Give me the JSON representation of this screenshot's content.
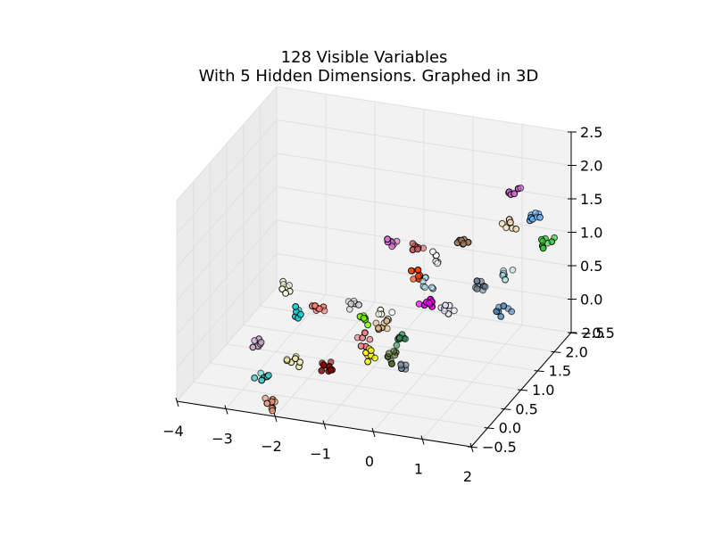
{
  "chart_data": {
    "type": "scatter",
    "projection": "3d",
    "title_lines": [
      "128 Visible Variables",
      "With 5 Hidden Dimensions. Graphed in 3D"
    ],
    "xlabel": "",
    "ylabel": "",
    "zlabel": "",
    "xlim": [
      -4,
      2
    ],
    "ylim": [
      -0.5,
      2.5
    ],
    "zlim": [
      -0.5,
      2.5
    ],
    "x_ticks": [
      "−4",
      "−3",
      "−2",
      "−1",
      "0",
      "1",
      "2"
    ],
    "y_ticks": [
      "−0.5",
      "0.0",
      "0.5",
      "1.0",
      "1.5",
      "2.0",
      "2.5"
    ],
    "z_ticks": [
      "−0.5",
      "0.0",
      "0.5",
      "1.0",
      "1.5",
      "2.0",
      "2.5"
    ],
    "grid": true,
    "marker": "circle",
    "marker_edge_color": "#000000",
    "clusters": [
      {
        "color": "#cc66cc",
        "x": 1.0,
        "y": 2.3,
        "z": 1.6,
        "n": 7
      },
      {
        "color": "#66b3ff",
        "x": 1.4,
        "y": 2.3,
        "z": 1.25,
        "n": 8
      },
      {
        "color": "#f5deb3",
        "x": 1.0,
        "y": 2.1,
        "z": 1.2,
        "n": 7
      },
      {
        "color": "#33cc33",
        "x": 1.8,
        "y": 2.1,
        "z": 1.05,
        "n": 8
      },
      {
        "color": "#a0785a",
        "x": 0.3,
        "y": 1.8,
        "z": 1.05,
        "n": 7
      },
      {
        "color": "#b0e0e6",
        "x": 1.3,
        "y": 1.6,
        "z": 0.8,
        "n": 7
      },
      {
        "color": "#708090",
        "x": 0.9,
        "y": 1.4,
        "z": 0.7,
        "n": 8
      },
      {
        "color": "#4682b4",
        "x": 1.5,
        "y": 1.2,
        "z": 0.5,
        "n": 7
      },
      {
        "color": "#e6e6fa",
        "x": 0.4,
        "y": 1.1,
        "z": 0.45,
        "n": 7
      },
      {
        "color": "#da70d6",
        "x": -1.2,
        "y": 1.9,
        "z": 0.85,
        "n": 7
      },
      {
        "color": "#cd5c5c",
        "x": -0.7,
        "y": 1.9,
        "z": 0.8,
        "n": 6
      },
      {
        "color": "#ffffff",
        "x": -0.3,
        "y": 1.8,
        "z": 0.75,
        "n": 6
      },
      {
        "color": "#ff4500",
        "x": -0.6,
        "y": 1.6,
        "z": 0.6,
        "n": 7
      },
      {
        "color": "#add8e6",
        "x": -0.2,
        "y": 1.5,
        "z": 0.55,
        "n": 6
      },
      {
        "color": "#ff00ff",
        "x": -0.1,
        "y": 1.3,
        "z": 0.4,
        "n": 9
      },
      {
        "color": "#fffff0",
        "x": -0.8,
        "y": 1.0,
        "z": 0.3,
        "n": 6
      },
      {
        "color": "#deb887",
        "x": -0.8,
        "y": 0.9,
        "z": 0.2,
        "n": 7
      },
      {
        "color": "#7cfc00",
        "x": -1.2,
        "y": 1.0,
        "z": 0.2,
        "n": 7
      },
      {
        "color": "#f08080",
        "x": -1.0,
        "y": 0.75,
        "z": 0.05,
        "n": 6
      },
      {
        "color": "#d3d3d3",
        "x": -1.5,
        "y": 1.1,
        "z": 0.3,
        "n": 6
      },
      {
        "color": "#2e8b57",
        "x": -0.3,
        "y": 0.8,
        "z": 0.1,
        "n": 8
      },
      {
        "color": "#ffff00",
        "x": -0.8,
        "y": 0.6,
        "z": -0.05,
        "n": 8
      },
      {
        "color": "#556b2f",
        "x": -0.3,
        "y": 0.6,
        "z": -0.05,
        "n": 7
      },
      {
        "color": "#778899",
        "x": 0.0,
        "y": 0.5,
        "z": -0.1,
        "n": 5
      },
      {
        "color": "#fa8072",
        "x": -2.2,
        "y": 1.1,
        "z": 0.2,
        "n": 7
      },
      {
        "color": "#00ced1",
        "x": -2.5,
        "y": 1.0,
        "z": 0.15,
        "n": 6
      },
      {
        "color": "#f5f5dc",
        "x": -3.0,
        "y": 1.3,
        "z": 0.3,
        "n": 7
      },
      {
        "color": "#8b0000",
        "x": -1.6,
        "y": 0.5,
        "z": -0.25,
        "n": 9
      },
      {
        "color": "#c8a2c8",
        "x": -3.2,
        "y": 0.7,
        "z": -0.2,
        "n": 7
      },
      {
        "color": "#eee8aa",
        "x": -2.3,
        "y": 0.5,
        "z": -0.3,
        "n": 7
      },
      {
        "color": "#48d1cc",
        "x": -2.8,
        "y": 0.3,
        "z": -0.45,
        "n": 8
      },
      {
        "color": "#e9967a",
        "x": -2.4,
        "y": -0.1,
        "z": -0.6,
        "n": 8
      }
    ]
  }
}
